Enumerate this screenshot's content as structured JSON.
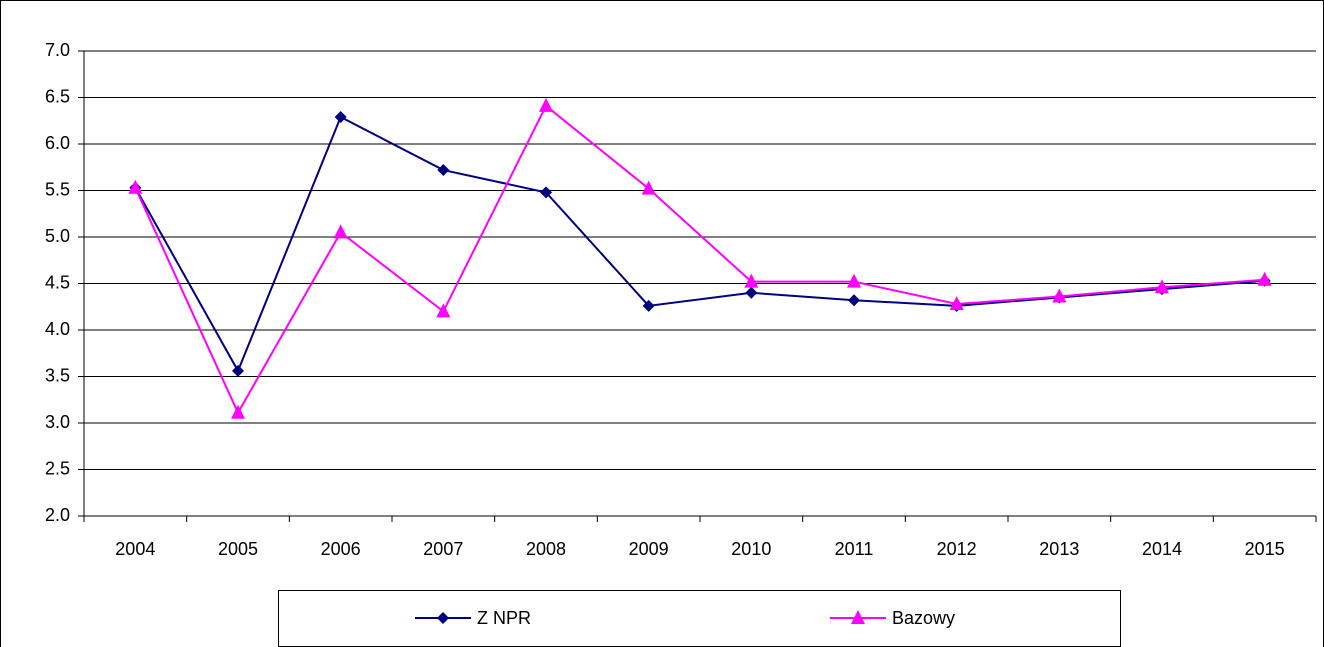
{
  "chart_data": {
    "type": "line",
    "categories": [
      "2004",
      "2005",
      "2006",
      "2007",
      "2008",
      "2009",
      "2010",
      "2011",
      "2012",
      "2013",
      "2014",
      "2015"
    ],
    "series": [
      {
        "name": "Z NPR",
        "color": "#000080",
        "marker": "diamond",
        "values": [
          5.53,
          3.56,
          6.29,
          5.72,
          5.48,
          4.26,
          4.4,
          4.32,
          4.26,
          4.35,
          4.44,
          4.53
        ]
      },
      {
        "name": "Bazowy",
        "color": "#ff00ff",
        "marker": "triangle",
        "values": [
          5.53,
          3.11,
          5.05,
          4.2,
          6.41,
          5.52,
          4.52,
          4.52,
          4.28,
          4.36,
          4.46,
          4.54
        ]
      }
    ],
    "ylim": [
      2,
      7
    ],
    "yticks": [
      {
        "value": 2,
        "label": "2.0"
      },
      2.5,
      {
        "value": 3,
        "label": "3.0"
      },
      3.5,
      {
        "value": 4,
        "label": "4.0"
      },
      4.5,
      {
        "value": 5,
        "label": "5.0"
      },
      5.5,
      {
        "value": 6,
        "label": "6.0"
      },
      6.5,
      {
        "value": 7,
        "label": "7.0"
      }
    ],
    "grid": true
  }
}
